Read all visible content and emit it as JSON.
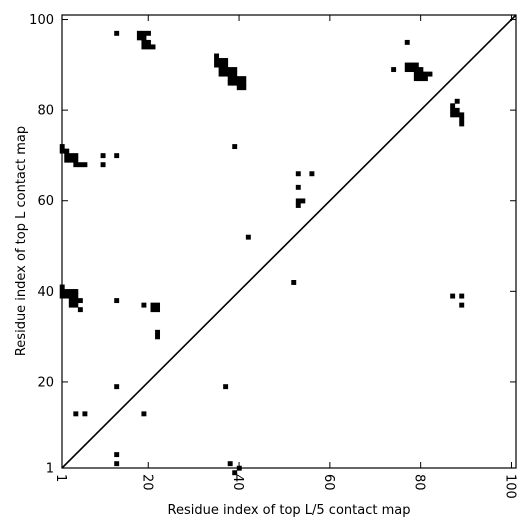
{
  "chart_data": {
    "type": "heatmap",
    "xlabel": "Residue index of top L/5 contact map",
    "ylabel": "Residue index of top L contact map",
    "xlim": [
      1,
      101
    ],
    "ylim": [
      1,
      101
    ],
    "x_ticks": [
      {
        "value": 1,
        "label": "1"
      },
      {
        "value": 20,
        "label": "20"
      },
      {
        "value": 40,
        "label": "40"
      },
      {
        "value": 60,
        "label": "60"
      },
      {
        "value": 80,
        "label": "80"
      },
      {
        "value": 100,
        "label": "100"
      }
    ],
    "y_ticks": [
      {
        "value": 1,
        "label": "1"
      },
      {
        "value": 20,
        "label": "20"
      },
      {
        "value": 40,
        "label": "40"
      },
      {
        "value": 60,
        "label": "60"
      },
      {
        "value": 80,
        "label": "80"
      },
      {
        "value": 100,
        "label": "100"
      }
    ],
    "x_tick_rotation": 90,
    "diagonal": {
      "from": [
        1,
        1
      ],
      "to": [
        101,
        101
      ]
    },
    "cell_color": "#000000",
    "contacts": [
      [
        13,
        97
      ],
      [
        18,
        97
      ],
      [
        19,
        97
      ],
      [
        20,
        97
      ],
      [
        18,
        96
      ],
      [
        19,
        96
      ],
      [
        19,
        95
      ],
      [
        20,
        95
      ],
      [
        19,
        94
      ],
      [
        20,
        94
      ],
      [
        21,
        94
      ],
      [
        35,
        92
      ],
      [
        35,
        91
      ],
      [
        36,
        91
      ],
      [
        37,
        91
      ],
      [
        35,
        90
      ],
      [
        36,
        90
      ],
      [
        37,
        90
      ],
      [
        36,
        89
      ],
      [
        37,
        89
      ],
      [
        38,
        89
      ],
      [
        39,
        89
      ],
      [
        36,
        88
      ],
      [
        37,
        88
      ],
      [
        38,
        88
      ],
      [
        39,
        88
      ],
      [
        38,
        87
      ],
      [
        39,
        87
      ],
      [
        40,
        87
      ],
      [
        41,
        87
      ],
      [
        38,
        86
      ],
      [
        39,
        86
      ],
      [
        40,
        86
      ],
      [
        41,
        86
      ],
      [
        40,
        85
      ],
      [
        41,
        85
      ],
      [
        77,
        95
      ],
      [
        74,
        89
      ],
      [
        77,
        90
      ],
      [
        78,
        90
      ],
      [
        79,
        90
      ],
      [
        77,
        89
      ],
      [
        78,
        89
      ],
      [
        79,
        89
      ],
      [
        80,
        89
      ],
      [
        79,
        88
      ],
      [
        80,
        88
      ],
      [
        81,
        88
      ],
      [
        82,
        88
      ],
      [
        79,
        87
      ],
      [
        80,
        87
      ],
      [
        81,
        87
      ],
      [
        88,
        82
      ],
      [
        87,
        81
      ],
      [
        87,
        80
      ],
      [
        88,
        80
      ],
      [
        87,
        79
      ],
      [
        88,
        79
      ],
      [
        89,
        79
      ],
      [
        89,
        78
      ],
      [
        89,
        77
      ],
      [
        1,
        72
      ],
      [
        1,
        71
      ],
      [
        2,
        71
      ],
      [
        2,
        70
      ],
      [
        3,
        70
      ],
      [
        4,
        70
      ],
      [
        2,
        69
      ],
      [
        3,
        69
      ],
      [
        4,
        69
      ],
      [
        4,
        68
      ],
      [
        5,
        68
      ],
      [
        6,
        68
      ],
      [
        10,
        70
      ],
      [
        13,
        70
      ],
      [
        10,
        68
      ],
      [
        39,
        72
      ],
      [
        53,
        66
      ],
      [
        56,
        66
      ],
      [
        53,
        63
      ],
      [
        53,
        60
      ],
      [
        54,
        60
      ],
      [
        53,
        59
      ],
      [
        42,
        52
      ],
      [
        52,
        42
      ],
      [
        1,
        41
      ],
      [
        1,
        40
      ],
      [
        2,
        40
      ],
      [
        3,
        40
      ],
      [
        4,
        40
      ],
      [
        1,
        39
      ],
      [
        2,
        39
      ],
      [
        3,
        39
      ],
      [
        4,
        39
      ],
      [
        3,
        38
      ],
      [
        4,
        38
      ],
      [
        5,
        38
      ],
      [
        3,
        37
      ],
      [
        4,
        37
      ],
      [
        5,
        36
      ],
      [
        13,
        38
      ],
      [
        19,
        37
      ],
      [
        21,
        37
      ],
      [
        22,
        37
      ],
      [
        21,
        36
      ],
      [
        22,
        36
      ],
      [
        22,
        31
      ],
      [
        22,
        30
      ],
      [
        87,
        39
      ],
      [
        89,
        39
      ],
      [
        89,
        37
      ],
      [
        13,
        19
      ],
      [
        37,
        19
      ],
      [
        4,
        13
      ],
      [
        6,
        13
      ],
      [
        19,
        13
      ],
      [
        13,
        4
      ],
      [
        13,
        2
      ],
      [
        38,
        2
      ],
      [
        40,
        1
      ],
      [
        39,
        0
      ]
    ]
  }
}
